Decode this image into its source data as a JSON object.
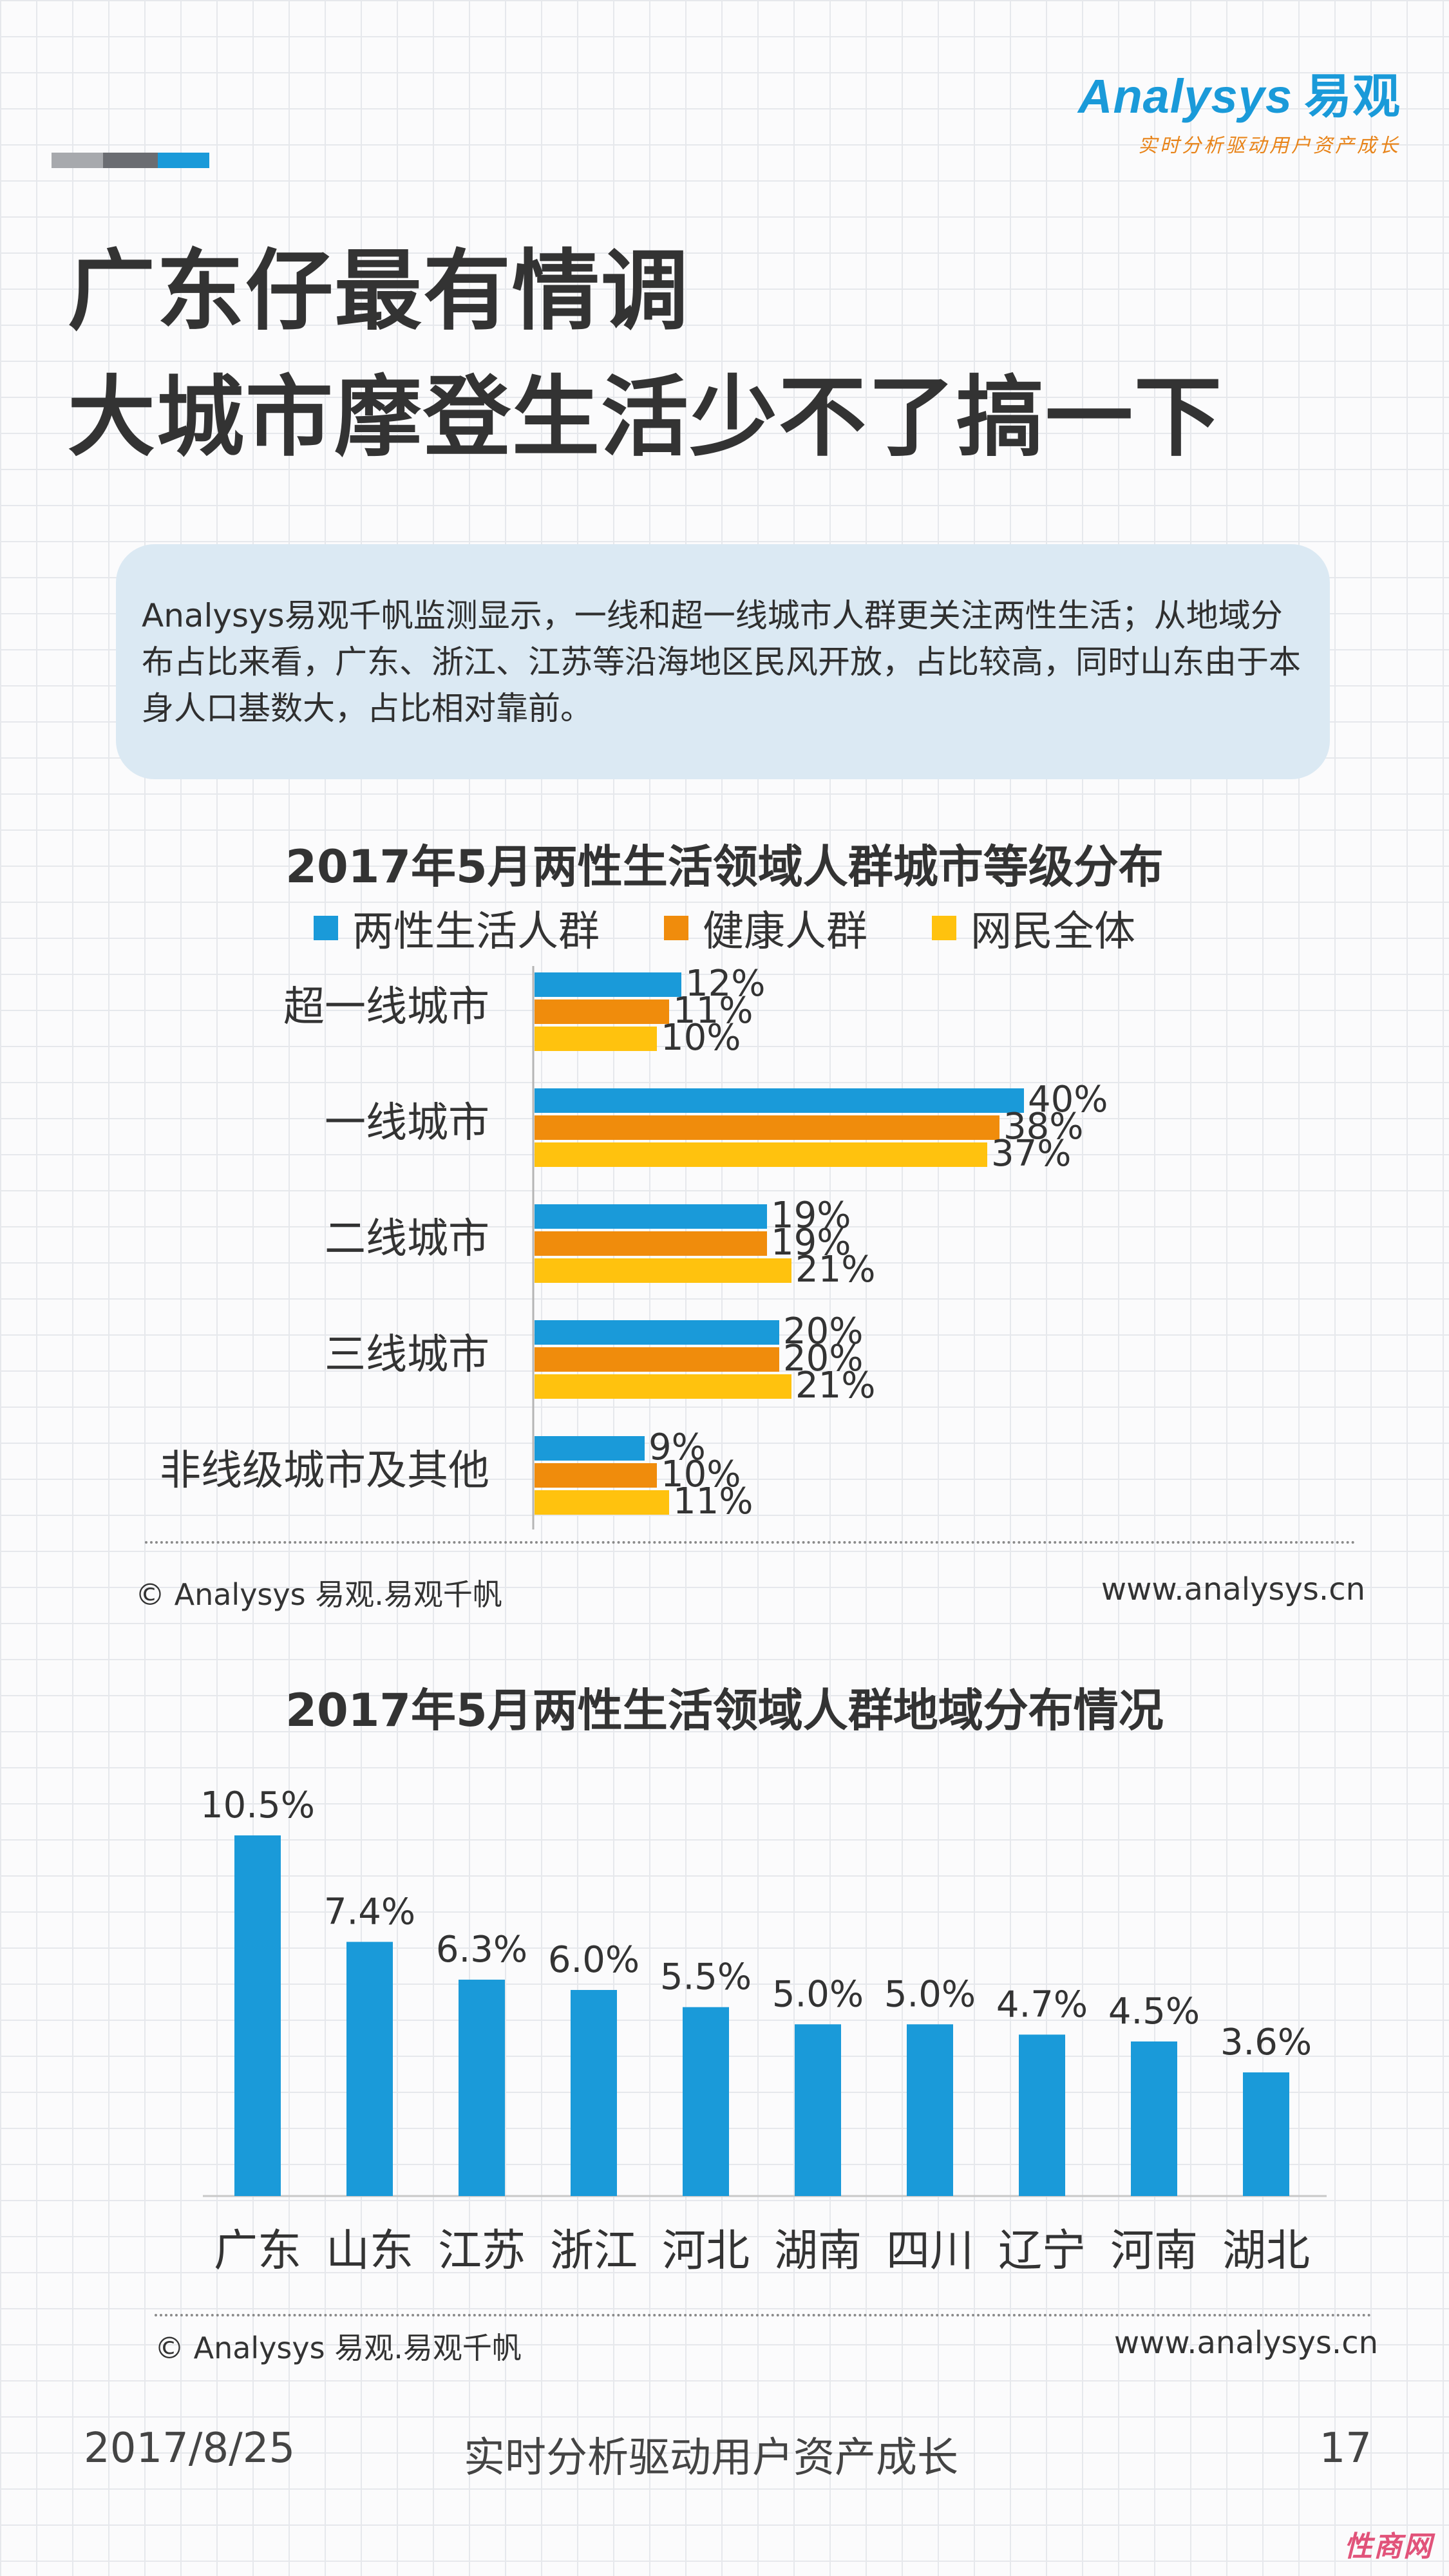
{
  "header": {
    "logo_text": "nalysys",
    "logo_prefix": "A",
    "logo_cn": "易观",
    "logo_slogan": "实时分析驱动用户资产成长",
    "deco_colors": [
      "#a7a9ad",
      "#6b6d72",
      "#1a9ad9"
    ]
  },
  "title": {
    "line1": "广东仔最有情调",
    "line2": "大城市摩登生活少不了搞一下"
  },
  "summary": {
    "text": "Analysys易观千帆监测显示，一线和超一线城市人群更关注两性生活；从地域分布占比来看，广东、浙江、江苏等沿海地区民风开放，占比较高，同时山东由于本身人口基数大，占比相对靠前。"
  },
  "colors": {
    "blue": "#1a9ad9",
    "orange": "#f08c0c",
    "yellow": "#ffc20e"
  },
  "chart_data": [
    {
      "type": "bar",
      "orientation": "horizontal",
      "title": "2017年5月两性生活领域人群城市等级分布",
      "categories": [
        "超一线城市",
        "一线城市",
        "二线城市",
        "三线城市",
        "非线级城市及其他"
      ],
      "series": [
        {
          "name": "两性生活人群",
          "color": "#1a9ad9",
          "values": [
            12,
            40,
            19,
            20,
            9
          ]
        },
        {
          "name": "健康人群",
          "color": "#f08c0c",
          "values": [
            11,
            38,
            19,
            20,
            10
          ]
        },
        {
          "name": "网民全体",
          "color": "#ffc20e",
          "values": [
            10,
            37,
            21,
            21,
            11
          ]
        }
      ],
      "unit": "%",
      "xlim": [
        0,
        40
      ],
      "legend": "top-center",
      "source": "© Analysys 易观.易观千帆",
      "site": "www.analysys.cn"
    },
    {
      "type": "bar",
      "orientation": "vertical",
      "title": "2017年5月两性生活领域人群地域分布情况",
      "categories": [
        "广东",
        "山东",
        "江苏",
        "浙江",
        "河北",
        "湖南",
        "四川",
        "辽宁",
        "河南",
        "湖北"
      ],
      "values": [
        10.5,
        7.4,
        6.3,
        6.0,
        5.5,
        5.0,
        5.0,
        4.7,
        4.5,
        3.6
      ],
      "labels": [
        "10.5%",
        "7.4%",
        "6.3%",
        "6.0%",
        "5.5%",
        "5.0%",
        "5.0%",
        "4.7%",
        "4.5%",
        "3.6%"
      ],
      "color": "#1a9ad9",
      "ylim": [
        0,
        10.5
      ],
      "source": "© Analysys 易观.易观千帆",
      "site": "www.analysys.cn"
    }
  ],
  "footer": {
    "date": "2017/8/25",
    "slogan": "实时分析驱动用户资产成长",
    "page": "17"
  },
  "corner_mark": "性商网"
}
